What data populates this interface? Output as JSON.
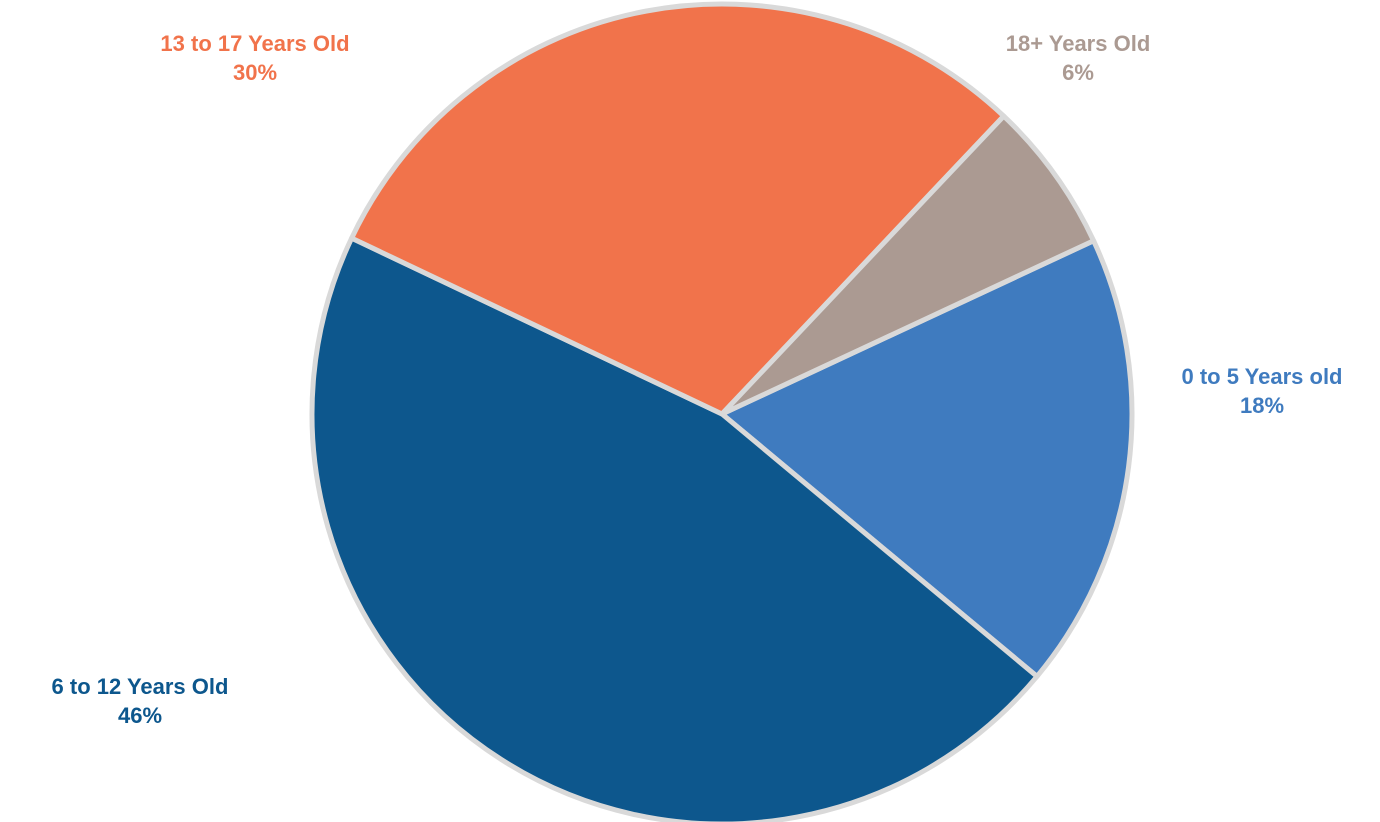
{
  "chart_data": {
    "type": "pie",
    "title": "",
    "slices": [
      {
        "label": "0 to 5 Years old",
        "value": 18,
        "value_label": "18%",
        "color": "#3f7bbf"
      },
      {
        "label": "6 to 12 Years Old",
        "value": 46,
        "value_label": "46%",
        "color": "#0d578d"
      },
      {
        "label": "13 to 17 Years Old",
        "value": 30,
        "value_label": "30%",
        "color": "#f1734b"
      },
      {
        "label": "18+ Years Old",
        "value": 6,
        "value_label": "6%",
        "color": "#ab9a92"
      }
    ],
    "separator_color": "#d9d9d9",
    "legend": "none"
  }
}
